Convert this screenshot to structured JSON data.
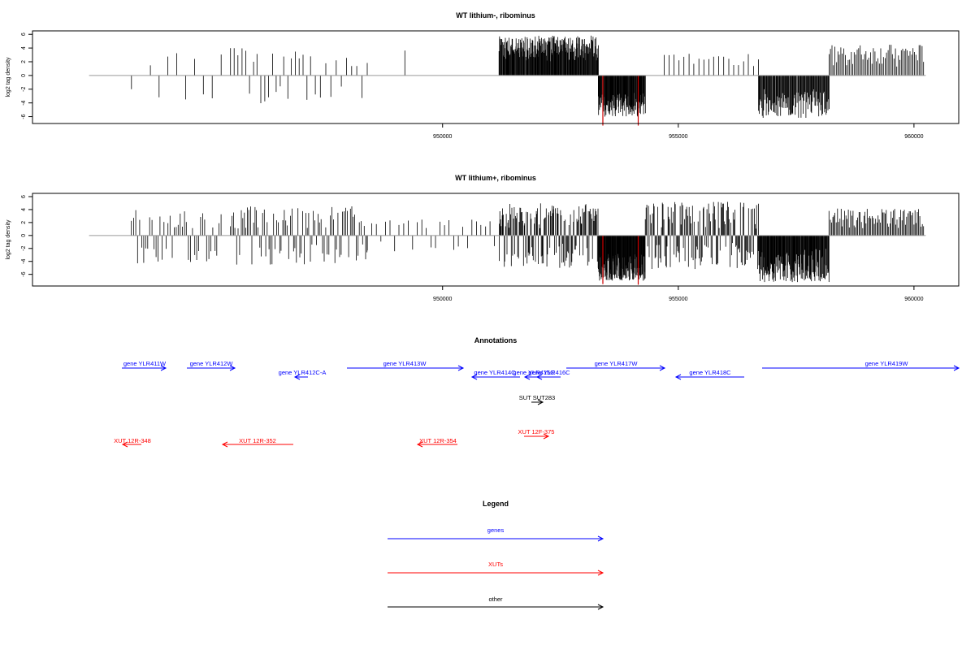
{
  "colors": {
    "genes": "#0000ff",
    "xuts": "#ff0000",
    "other": "#000000",
    "highlight": "#cc0000",
    "baseline": "#999999"
  },
  "chart_data": [
    {
      "type": "bar",
      "title": "WT lithium-, ribominus",
      "ylabel": "log2 tag density",
      "xlim": [
        941300,
        960950
      ],
      "ylim": [
        -7,
        6.5
      ],
      "x_ticks": [
        {
          "v": 950000,
          "label": "950000"
        },
        {
          "v": 955000,
          "label": "955000"
        },
        {
          "v": 960000,
          "label": "960000"
        }
      ],
      "y_ticks": [
        {
          "v": 6,
          "label": "6"
        },
        {
          "v": 4,
          "label": "4"
        },
        {
          "v": 2,
          "label": "2"
        },
        {
          "v": 0,
          "label": "0"
        },
        {
          "v": -2,
          "label": "-2"
        },
        {
          "v": -4,
          "label": "-4"
        },
        {
          "v": -6,
          "label": "-6"
        }
      ],
      "baseline": [
        942500,
        960250
      ],
      "grid": false,
      "segments": [
        {
          "x0": 943400,
          "x1": 943400,
          "dir": "neg",
          "min": 2,
          "max": 2,
          "n": 1,
          "seed": 11
        },
        {
          "x0": 943800,
          "x1": 945300,
          "dir": "mixed",
          "min": 1,
          "max": 3.5,
          "n": 9,
          "seed": 12
        },
        {
          "x0": 945500,
          "x1": 947200,
          "dir": "mixed",
          "min": 1.5,
          "max": 4.2,
          "n": 22,
          "seed": 13
        },
        {
          "x0": 947300,
          "x1": 948400,
          "dir": "mixed",
          "min": 1,
          "max": 3.3,
          "n": 11,
          "seed": 14
        },
        {
          "x0": 949200,
          "x1": 951200,
          "dir": "pos",
          "min": 2.5,
          "max": 5.5,
          "n": 1,
          "seed": 15
        },
        {
          "x0": 951200,
          "x1": 953300,
          "dir": "pos",
          "min": 2,
          "max": 5.8,
          "n": 210,
          "seed": 16
        },
        {
          "x0": 953300,
          "x1": 954300,
          "dir": "neg",
          "min": 2.5,
          "max": 6,
          "n": 110,
          "seed": 17
        },
        {
          "x0": 954700,
          "x1": 956700,
          "dir": "pos",
          "min": 1,
          "max": 3.2,
          "n": 20,
          "seed": 18
        },
        {
          "x0": 956700,
          "x1": 958200,
          "dir": "neg",
          "min": 2,
          "max": 6.2,
          "n": 110,
          "seed": 19
        },
        {
          "x0": 958200,
          "x1": 960200,
          "dir": "pos",
          "min": 1.2,
          "max": 4.5,
          "n": 65,
          "seed": 20
        }
      ],
      "highlights": [
        {
          "x": 953400,
          "y": -7.3
        },
        {
          "x": 954150,
          "y": -7.3
        }
      ]
    },
    {
      "type": "bar",
      "title": "WT lithium+, ribominus",
      "ylabel": "log2 tag density",
      "xlim": [
        941300,
        960950
      ],
      "ylim": [
        -7.8,
        6.5
      ],
      "x_ticks": [
        {
          "v": 950000,
          "label": "950000"
        },
        {
          "v": 955000,
          "label": "955000"
        },
        {
          "v": 960000,
          "label": "960000"
        }
      ],
      "y_ticks": [
        {
          "v": 6,
          "label": "6"
        },
        {
          "v": 4,
          "label": "4"
        },
        {
          "v": 2,
          "label": "2"
        },
        {
          "v": 0,
          "label": "0"
        },
        {
          "v": -2,
          "label": "-2"
        },
        {
          "v": -4,
          "label": "-4"
        },
        {
          "v": -6,
          "label": "-6"
        }
      ],
      "baseline": [
        942500,
        960250
      ],
      "grid": false,
      "segments": [
        {
          "x0": 943400,
          "x1": 945300,
          "dir": "mixed",
          "min": 1,
          "max": 4.3,
          "n": 45,
          "seed": 21
        },
        {
          "x0": 945500,
          "x1": 948400,
          "dir": "mixed",
          "min": 1,
          "max": 4.5,
          "n": 90,
          "seed": 22
        },
        {
          "x0": 948400,
          "x1": 951200,
          "dir": "mixed",
          "min": 0.8,
          "max": 2.5,
          "n": 30,
          "seed": 23
        },
        {
          "x0": 951200,
          "x1": 953300,
          "dir": "mixed",
          "min": 1,
          "max": 5,
          "n": 140,
          "seed": 24
        },
        {
          "x0": 953300,
          "x1": 954300,
          "dir": "neg",
          "min": 2.5,
          "max": 7,
          "n": 150,
          "seed": 25
        },
        {
          "x0": 954300,
          "x1": 956700,
          "dir": "mixed",
          "min": 1,
          "max": 5.2,
          "n": 140,
          "seed": 26
        },
        {
          "x0": 956700,
          "x1": 958200,
          "dir": "neg",
          "min": 2,
          "max": 7.2,
          "n": 150,
          "seed": 27
        },
        {
          "x0": 958200,
          "x1": 960200,
          "dir": "pos",
          "min": 1,
          "max": 4.2,
          "n": 80,
          "seed": 28
        }
      ],
      "highlights": [
        {
          "x": 953400,
          "y": -7.5
        },
        {
          "x": 954150,
          "y": -7.6
        }
      ]
    }
  ],
  "annotations": {
    "title": "Annotations",
    "items": [
      {
        "label": "gene YLR411W",
        "type": "genes",
        "dir": "+"
      },
      {
        "label": "gene YLR412W",
        "type": "genes",
        "dir": "+"
      },
      {
        "label": "gene YLR412C-A",
        "type": "genes",
        "dir": "-"
      },
      {
        "label": "gene YLR413W",
        "type": "genes",
        "dir": "+"
      },
      {
        "label": "gene YLR414C",
        "type": "genes",
        "dir": "-"
      },
      {
        "label": "gene YLR415C",
        "type": "genes",
        "dir": "-"
      },
      {
        "label": "gene YLR416C",
        "type": "genes",
        "dir": "-"
      },
      {
        "label": "gene YLR417W",
        "type": "genes",
        "dir": "+"
      },
      {
        "label": "gene YLR418C",
        "type": "genes",
        "dir": "-"
      },
      {
        "label": "gene YLR419W",
        "type": "genes",
        "dir": "+"
      },
      {
        "label": "SUT SUT283",
        "type": "other",
        "dir": "+"
      },
      {
        "label": "XUT 12R-348",
        "type": "xuts",
        "dir": "-"
      },
      {
        "label": "XUT 12R-352",
        "type": "xuts",
        "dir": "-"
      },
      {
        "label": "XUT 12R-354",
        "type": "xuts",
        "dir": "-"
      },
      {
        "label": "XUT 12F-375",
        "type": "xuts",
        "dir": "+"
      }
    ]
  },
  "legend": {
    "title": "Legend",
    "entries": [
      {
        "label": "genes",
        "type": "genes"
      },
      {
        "label": "XUTs",
        "type": "xuts"
      },
      {
        "label": "other",
        "type": "other"
      }
    ]
  }
}
